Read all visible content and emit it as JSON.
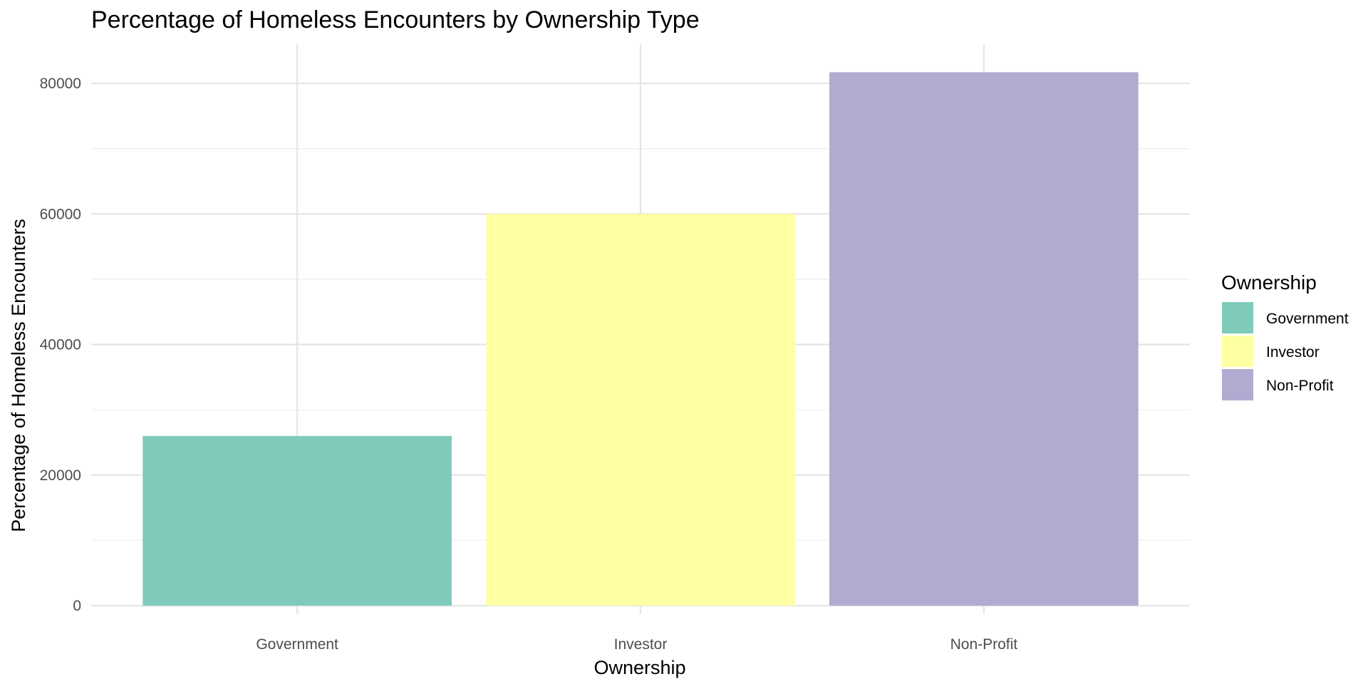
{
  "chart_data": {
    "type": "bar",
    "title": "Percentage of Homeless Encounters by Ownership Type",
    "xlabel": "Ownership",
    "ylabel": "Percentage of Homeless Encounters",
    "categories": [
      "Government",
      "Investor",
      "Non-Profit"
    ],
    "values": [
      26000,
      60000,
      81700
    ],
    "ylim": [
      -1300,
      86000
    ],
    "y_ticks": [
      0,
      20000,
      40000,
      60000,
      80000
    ],
    "y_tick_labels": [
      "0",
      "20000",
      "40000",
      "60000",
      "80000"
    ],
    "grid": true,
    "legend": {
      "title": "Ownership",
      "position": "right",
      "items": [
        "Government",
        "Investor",
        "Non-Profit"
      ]
    },
    "colors": {
      "Government": "#7fcbbb",
      "Investor": "#ffffa3",
      "Non-Profit": "#b1abd1"
    }
  }
}
